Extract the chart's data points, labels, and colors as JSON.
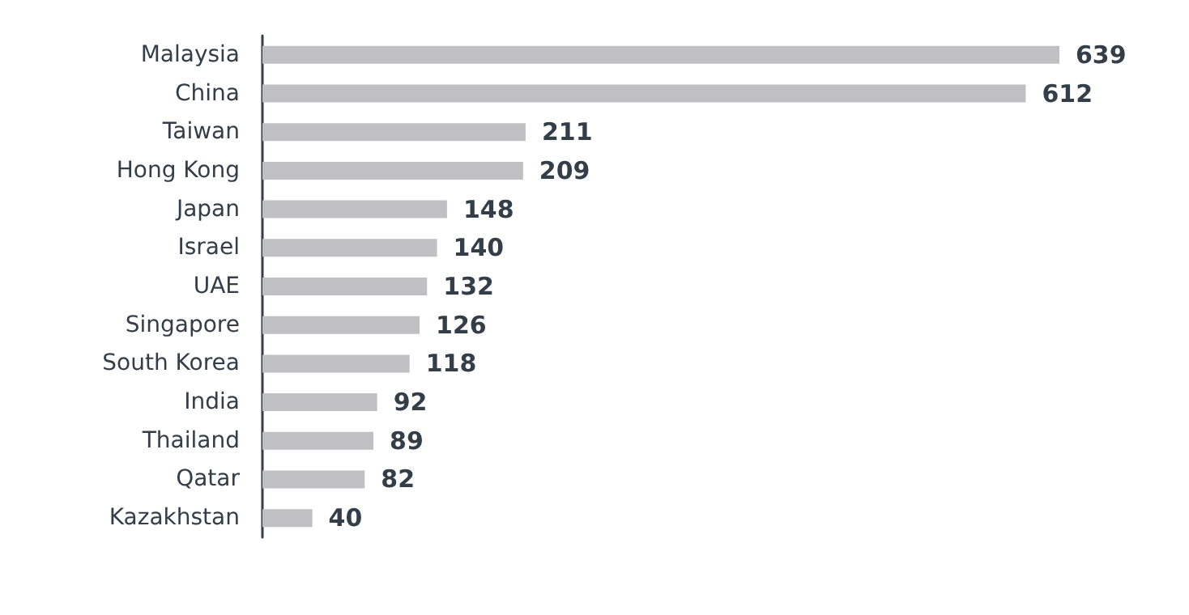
{
  "chart_data": {
    "type": "bar",
    "orientation": "horizontal",
    "categories": [
      "Malaysia",
      "China",
      "Taiwan",
      "Hong Kong",
      "Japan",
      "Israel",
      "UAE",
      "Singapore",
      "South Korea",
      "India",
      "Thailand",
      "Qatar",
      "Kazakhstan"
    ],
    "values": [
      639,
      612,
      211,
      209,
      148,
      140,
      132,
      126,
      118,
      92,
      89,
      82,
      40
    ],
    "color": "#c0c0c2",
    "data_labels": true
  }
}
